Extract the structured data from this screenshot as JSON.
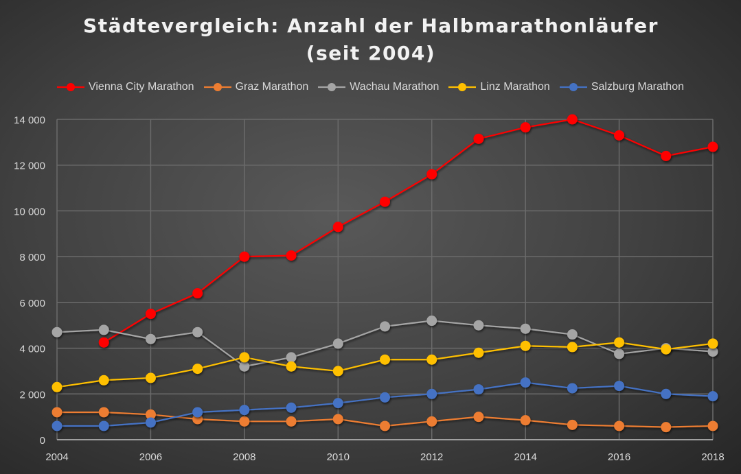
{
  "chart_data": {
    "type": "line",
    "title": "Städtevergleich: Anzahl der Halbmarathonläufer (seit 2004)",
    "xlabel": "",
    "ylabel": "",
    "x": [
      2004,
      2005,
      2006,
      2007,
      2008,
      2009,
      2010,
      2011,
      2012,
      2013,
      2014,
      2015,
      2016,
      2017,
      2018
    ],
    "x_ticks": [
      "2004",
      "2006",
      "2008",
      "2010",
      "2012",
      "2014",
      "2016",
      "2018"
    ],
    "y_ticks": [
      "0",
      "2 000",
      "4 000",
      "6 000",
      "8 000",
      "10 000",
      "12 000",
      "14 000"
    ],
    "ylim": [
      0,
      14000
    ],
    "grid": true,
    "legend": "top",
    "series": [
      {
        "name": "Vienna City Marathon",
        "color": "#ff0000",
        "values": [
          null,
          4250,
          5500,
          6400,
          8000,
          8050,
          9300,
          10400,
          11600,
          13150,
          13650,
          14000,
          13300,
          12400,
          12800
        ]
      },
      {
        "name": "Graz Marathon",
        "color": "#ed7d31",
        "values": [
          1200,
          1200,
          1100,
          900,
          800,
          800,
          900,
          600,
          800,
          1000,
          850,
          650,
          600,
          550,
          600
        ]
      },
      {
        "name": "Wachau Marathon",
        "color": "#a5a5a5",
        "values": [
          4700,
          4800,
          4400,
          4700,
          3200,
          3600,
          4200,
          4950,
          5200,
          5000,
          4850,
          4600,
          3750,
          4000,
          3850
        ]
      },
      {
        "name": "Linz Marathon",
        "color": "#ffc000",
        "values": [
          2300,
          2600,
          2700,
          3100,
          3600,
          3200,
          3000,
          3500,
          3500,
          3800,
          4100,
          4050,
          4250,
          3950,
          4200
        ]
      },
      {
        "name": "Salzburg Marathon",
        "color": "#4472c4",
        "values": [
          600,
          600,
          750,
          1200,
          1300,
          1400,
          1600,
          1850,
          2000,
          2200,
          2500,
          2250,
          2350,
          2000,
          1900
        ]
      }
    ]
  }
}
